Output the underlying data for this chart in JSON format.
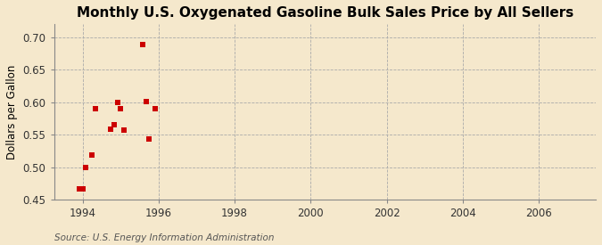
{
  "title": "Monthly U.S. Oxygenated Gasoline Bulk Sales Price by All Sellers",
  "ylabel": "Dollars per Gallon",
  "source": "Source: U.S. Energy Information Administration",
  "background_color": "#f5e8cc",
  "scatter_color": "#cc0000",
  "xlim": [
    1993.25,
    2007.5
  ],
  "ylim": [
    0.45,
    0.72
  ],
  "yticks": [
    0.45,
    0.5,
    0.55,
    0.6,
    0.65,
    0.7
  ],
  "xticks": [
    1994,
    1996,
    1998,
    2000,
    2002,
    2004,
    2006
  ],
  "data_x": [
    1993.92,
    1994.0,
    1994.08,
    1994.25,
    1994.33,
    1994.75,
    1994.83,
    1994.92,
    1995.0,
    1995.08,
    1995.58,
    1995.67,
    1995.75,
    1995.92
  ],
  "data_y": [
    0.466,
    0.466,
    0.5,
    0.519,
    0.59,
    0.559,
    0.565,
    0.6,
    0.59,
    0.557,
    0.689,
    0.601,
    0.544,
    0.59
  ],
  "marker_size": 18,
  "title_fontsize": 11,
  "label_fontsize": 8.5,
  "tick_fontsize": 8.5,
  "source_fontsize": 7.5,
  "grid_color": "#aaaaaa",
  "spine_color": "#888888"
}
